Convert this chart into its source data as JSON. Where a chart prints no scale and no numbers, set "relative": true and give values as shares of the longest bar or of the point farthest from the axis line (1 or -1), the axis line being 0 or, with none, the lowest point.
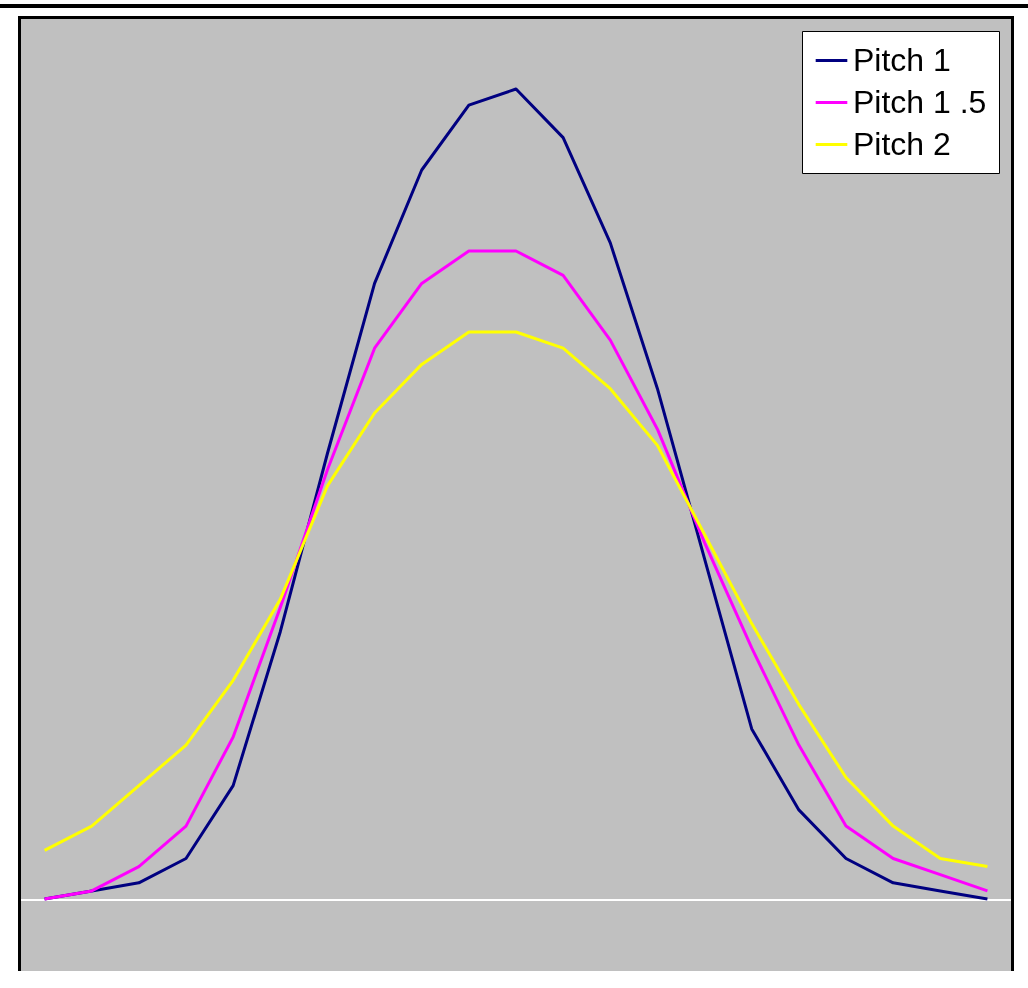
{
  "chart_data": {
    "type": "line",
    "relative": true,
    "legend": "top right",
    "categories": [
      null,
      null,
      null,
      null,
      null,
      null,
      null,
      null,
      null,
      null,
      null,
      null,
      null,
      null,
      null,
      null,
      null,
      null,
      null,
      null,
      null
    ],
    "series": [
      {
        "name": "Pitch 1",
        "color": "#000080",
        "values": [
          0.0,
          0.01,
          0.02,
          0.05,
          0.14,
          0.33,
          0.55,
          0.76,
          0.9,
          0.98,
          1.0,
          0.94,
          0.81,
          0.63,
          0.42,
          0.21,
          0.11,
          0.05,
          0.02,
          0.01,
          0.0
        ]
      },
      {
        "name": "Pitch 1 .5",
        "color": "#ff00ff",
        "values": [
          0.0,
          0.01,
          0.04,
          0.09,
          0.2,
          0.36,
          0.53,
          0.68,
          0.76,
          0.8,
          0.8,
          0.77,
          0.69,
          0.58,
          0.44,
          0.31,
          0.19,
          0.09,
          0.05,
          0.03,
          0.01
        ]
      },
      {
        "name": "Pitch 2",
        "color": "#ffff00",
        "values": [
          0.06,
          0.09,
          0.14,
          0.19,
          0.27,
          0.37,
          0.51,
          0.6,
          0.66,
          0.7,
          0.7,
          0.68,
          0.63,
          0.56,
          0.45,
          0.34,
          0.24,
          0.15,
          0.09,
          0.05,
          0.04
        ]
      }
    ]
  }
}
